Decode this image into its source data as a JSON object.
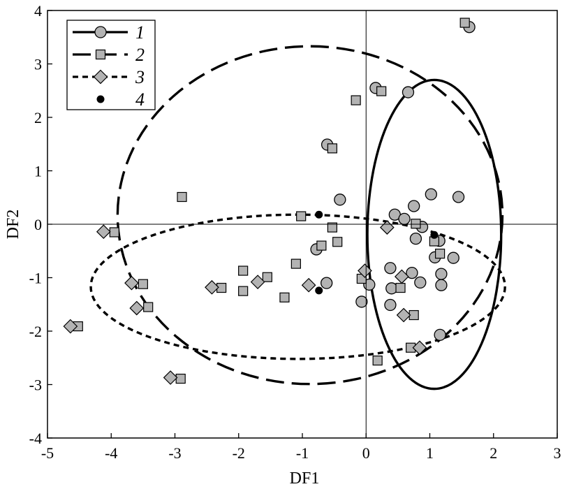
{
  "chart_data": {
    "type": "scatter",
    "title": "",
    "xlabel": "DF1",
    "ylabel": "DF2",
    "xlim": [
      -5,
      3
    ],
    "ylim": [
      -4,
      4
    ],
    "xticks": [
      "-5",
      "-4",
      "-3",
      "-2",
      "-1",
      "0",
      "1",
      "2",
      "3"
    ],
    "yticks": [
      "-4",
      "-3",
      "-2",
      "-1",
      "0",
      "1",
      "2",
      "3",
      "4"
    ],
    "reference_lines": {
      "x": 0,
      "y": 0
    },
    "grid": false,
    "legend_position": "top-left",
    "series": [
      {
        "name": "1",
        "marker": "circle",
        "color": "#b3b3b3",
        "ellipse_style": "solid",
        "ellipse": {
          "cx": 1.07,
          "cy": -0.19,
          "rx": 1.05,
          "ry": 2.89
        },
        "points": [
          [
            1.62,
            3.69
          ],
          [
            0.15,
            2.55
          ],
          [
            0.66,
            2.47
          ],
          [
            -0.61,
            1.49
          ],
          [
            -0.41,
            0.46
          ],
          [
            1.02,
            0.56
          ],
          [
            1.45,
            0.51
          ],
          [
            0.75,
            0.34
          ],
          [
            0.45,
            0.18
          ],
          [
            0.6,
            0.1
          ],
          [
            0.88,
            -0.05
          ],
          [
            0.78,
            -0.27
          ],
          [
            1.15,
            -0.31
          ],
          [
            1.08,
            -0.62
          ],
          [
            1.37,
            -0.63
          ],
          [
            -0.78,
            -0.47
          ],
          [
            0.38,
            -0.82
          ],
          [
            0.72,
            -0.91
          ],
          [
            1.18,
            -0.93
          ],
          [
            -0.62,
            -1.1
          ],
          [
            0.05,
            -1.13
          ],
          [
            0.85,
            -1.09
          ],
          [
            0.4,
            -1.2
          ],
          [
            1.18,
            -1.14
          ],
          [
            -0.07,
            -1.45
          ],
          [
            0.38,
            -1.51
          ],
          [
            1.16,
            -2.07
          ]
        ]
      },
      {
        "name": "2",
        "marker": "square",
        "color": "#b3b3b3",
        "ellipse_style": "long-dash",
        "ellipse": {
          "cx": -0.88,
          "cy": 0.17,
          "rx": 3.02,
          "ry": 3.16
        },
        "points": [
          [
            1.55,
            3.77
          ],
          [
            0.24,
            2.49
          ],
          [
            -0.16,
            2.32
          ],
          [
            -0.53,
            1.42
          ],
          [
            -2.89,
            0.51
          ],
          [
            -1.02,
            0.15
          ],
          [
            -3.95,
            -0.15
          ],
          [
            -0.53,
            -0.06
          ],
          [
            0.78,
            0.01
          ],
          [
            1.07,
            -0.32
          ],
          [
            -0.7,
            -0.4
          ],
          [
            -0.45,
            -0.33
          ],
          [
            1.16,
            -0.55
          ],
          [
            -1.1,
            -0.74
          ],
          [
            -1.93,
            -0.87
          ],
          [
            -1.55,
            -0.99
          ],
          [
            -0.07,
            -1.02
          ],
          [
            -3.5,
            -1.12
          ],
          [
            -2.27,
            -1.19
          ],
          [
            -1.93,
            -1.25
          ],
          [
            0.54,
            -1.19
          ],
          [
            -1.28,
            -1.37
          ],
          [
            -3.42,
            -1.55
          ],
          [
            0.75,
            -1.7
          ],
          [
            -4.52,
            -1.91
          ],
          [
            0.7,
            -2.31
          ],
          [
            0.18,
            -2.55
          ],
          [
            -2.91,
            -2.89
          ]
        ]
      },
      {
        "name": "3",
        "marker": "diamond",
        "color": "#b3b3b3",
        "ellipse_style": "short-dash",
        "ellipse": {
          "cx": -1.07,
          "cy": -1.17,
          "rx": 3.25,
          "ry": 1.35
        },
        "points": [
          [
            -4.12,
            -0.14
          ],
          [
            0.33,
            -0.06
          ],
          [
            -0.02,
            -0.87
          ],
          [
            0.56,
            -0.98
          ],
          [
            -3.68,
            -1.1
          ],
          [
            -1.7,
            -1.08
          ],
          [
            -2.42,
            -1.18
          ],
          [
            -0.9,
            -1.14
          ],
          [
            -3.6,
            -1.57
          ],
          [
            0.59,
            -1.7
          ],
          [
            -4.64,
            -1.91
          ],
          [
            0.84,
            -2.31
          ],
          [
            -3.07,
            -2.87
          ]
        ]
      },
      {
        "name": "4",
        "marker": "dot",
        "color": "#000000",
        "points": [
          [
            -0.74,
            0.18
          ],
          [
            1.07,
            -0.2
          ],
          [
            -0.74,
            -1.24
          ]
        ]
      }
    ]
  }
}
